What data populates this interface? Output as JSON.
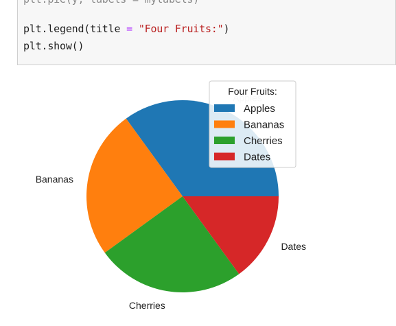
{
  "code_cell": {
    "cut_line": "plt.pie(y, labels = mylabels)",
    "line1_prefix": "plt.legend(title ",
    "line1_operator": "=",
    "line1_space": " ",
    "line1_string": "\"Four Fruits:\"",
    "line1_suffix": ")",
    "line2": "plt.show()"
  },
  "chart_data": {
    "type": "pie",
    "categories": [
      "Apples",
      "Bananas",
      "Cherries",
      "Dates"
    ],
    "values": [
      35,
      25,
      25,
      15
    ],
    "colors": [
      "#1f77b4",
      "#ff7f0e",
      "#2ca02c",
      "#d62728"
    ],
    "legend": {
      "title": "Four Fruits:",
      "entries": [
        "Apples",
        "Bananas",
        "Cherries",
        "Dates"
      ],
      "placement": "upper-right"
    }
  }
}
